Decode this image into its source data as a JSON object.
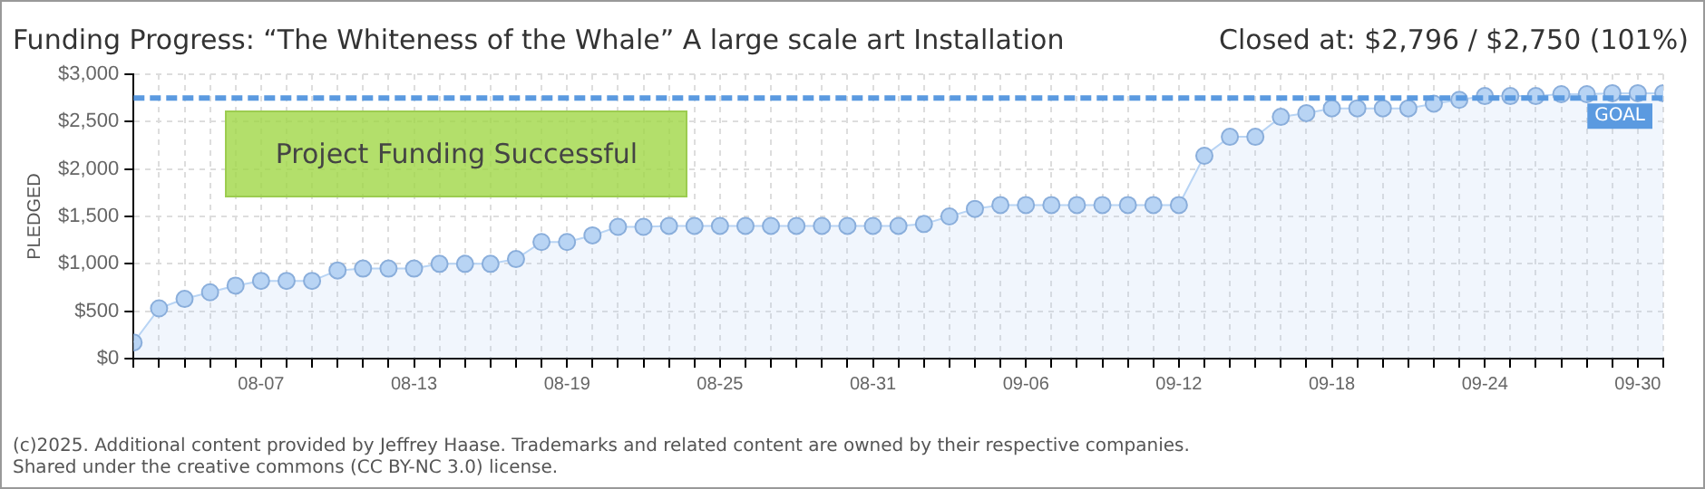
{
  "chart_data": {
    "type": "area",
    "title": "Funding Progress: “The Whiteness of the Whale” A large scale art Installation",
    "subtitle": "Closed at:  $2,796 / $2,750 (101%)",
    "ylabel": "PLEDGED",
    "annotations": [
      "Project Funding Successful",
      "(c)2025. Additional content provided by Jeffrey Haase. Trademarks and related content are owned by their respective companies.",
      "Shared under the creative commons (CC BY-NC 3.0) license."
    ],
    "x": [
      "--08-02",
      "--08-03",
      "--08-04",
      "--08-05",
      "--08-06",
      "--08-07",
      "--08-08",
      "--08-09",
      "--08-10",
      "--08-11",
      "--08-12",
      "--08-13",
      "--08-14",
      "--08-15",
      "--08-16",
      "--08-17",
      "--08-18",
      "--08-19",
      "--08-20",
      "--08-21",
      "--08-22",
      "--08-23",
      "--08-24",
      "--08-25",
      "--08-26",
      "--08-27",
      "--08-28",
      "--08-29",
      "--08-30",
      "--08-31",
      "--09-01",
      "--09-02",
      "--09-03",
      "--09-04",
      "--09-05",
      "--09-06",
      "--09-07",
      "--09-08",
      "--09-09",
      "--09-10",
      "--09-11",
      "--09-12",
      "--09-13",
      "--09-14",
      "--09-15",
      "--09-16",
      "--09-17",
      "--09-18",
      "--09-19",
      "--09-20",
      "--09-21",
      "--09-22",
      "--09-23",
      "--09-24",
      "--09-25",
      "--09-26",
      "--09-27",
      "--09-28",
      "--09-29",
      "--09-30",
      "--10-01"
    ],
    "series": [
      {
        "color": "#b8d4f4",
        "values": [
          170,
          530,
          630,
          700,
          770,
          820,
          820,
          820,
          930,
          950,
          950,
          950,
          1000,
          1000,
          1000,
          1050,
          1230,
          1230,
          1300,
          1390,
          1390,
          1400,
          1400,
          1400,
          1400,
          1400,
          1400,
          1400,
          1400,
          1400,
          1400,
          1420,
          1500,
          1580,
          1620,
          1620,
          1620,
          1620,
          1620,
          1620,
          1620,
          1620,
          2140,
          2340,
          2340,
          2550,
          2590,
          2640,
          2640,
          2640,
          2640,
          2690,
          2730,
          2770,
          2770,
          2770,
          2790,
          2790,
          2800,
          2800,
          2800
        ]
      }
    ],
    "xlim": [
      "--08-02",
      "--10-01"
    ],
    "xticks": [
      {
        "value": "--08-07",
        "label": "08-07"
      },
      {
        "value": "--08-13",
        "label": "08-13"
      },
      {
        "value": "--08-19",
        "label": "08-19"
      },
      {
        "value": "--08-25",
        "label": "08-25"
      },
      {
        "value": "--08-31",
        "label": "08-31"
      },
      {
        "value": "--09-06",
        "label": "09-06"
      },
      {
        "value": "--09-12",
        "label": "09-12"
      },
      {
        "value": "--09-18",
        "label": "09-18"
      },
      {
        "value": "--09-24",
        "label": "09-24"
      },
      {
        "value": "--09-30",
        "label": "09-30"
      }
    ],
    "ylim": [
      0,
      3000
    ],
    "yticks": [
      {
        "value": 0,
        "label": "$0"
      },
      {
        "value": 500,
        "label": "$500"
      },
      {
        "value": 1000,
        "label": "$1,000"
      },
      {
        "value": 1500,
        "label": "$1,500"
      },
      {
        "value": 2000,
        "label": "$2,000"
      },
      {
        "value": 2500,
        "label": "$2,500"
      },
      {
        "value": 3000,
        "label": "$3,000"
      }
    ],
    "ref_lines": [
      {
        "axis": "y",
        "value": 2750,
        "label": "GOAL",
        "color": "#5b9ae0",
        "line_style": "dashed"
      }
    ],
    "grid": true,
    "legend": false,
    "marker": "circle",
    "line_style": "solid"
  }
}
